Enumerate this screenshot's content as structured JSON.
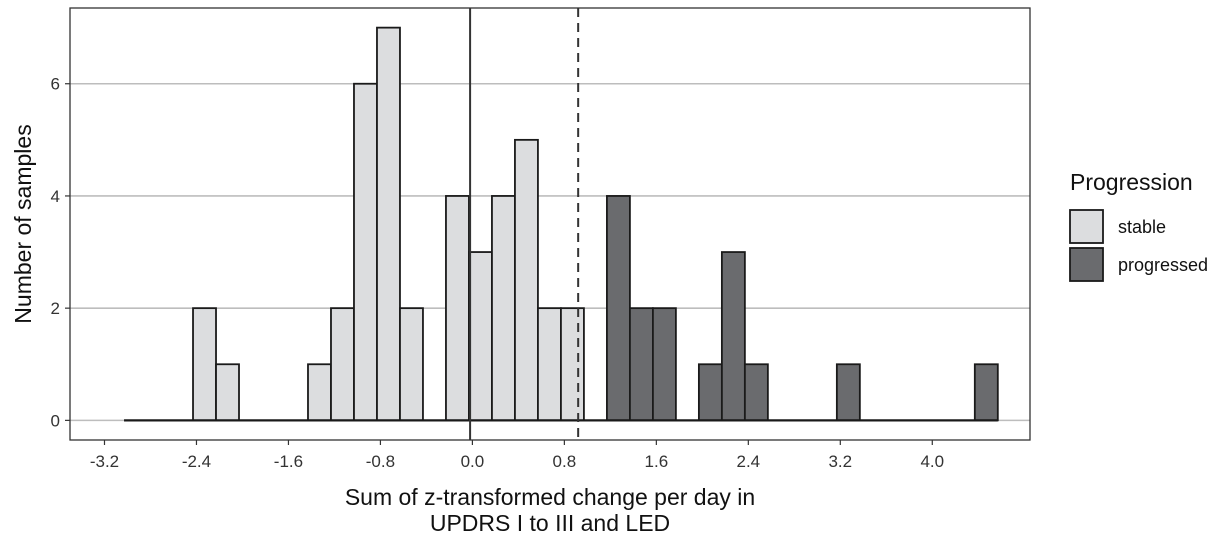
{
  "chart_data": {
    "type": "histogram",
    "title": "",
    "xlabel_lines": [
      "Sum of z-transformed change per day in",
      "UPDRS I to III and LED"
    ],
    "ylabel": "Number of samples",
    "xlim": [
      -3.5,
      4.85
    ],
    "ylim": [
      -0.35,
      7.35
    ],
    "x_ticks": [
      -3.2,
      -2.4,
      -1.6,
      -0.8,
      0.0,
      0.8,
      1.6,
      2.4,
      3.2,
      4.0
    ],
    "x_tick_labels": [
      "-3.2",
      "-2.4",
      "-1.6",
      "-0.8",
      "0.0",
      "0.8",
      "1.6",
      "2.4",
      "3.2",
      "4.0"
    ],
    "y_ticks": [
      0,
      2,
      4,
      6
    ],
    "y_tick_labels": [
      "0",
      "2",
      "4",
      "6"
    ],
    "grid": "horizontal major lines",
    "bin_width": 0.2,
    "first_bin_start": -3.03,
    "vlines": [
      {
        "x": -0.02,
        "style": "solid"
      },
      {
        "x": 0.92,
        "style": "dashed"
      }
    ],
    "legend": {
      "title": "Progression",
      "placement": "right",
      "entries": [
        {
          "label": "stable",
          "color": "#dcdddf"
        },
        {
          "label": "progressed",
          "color": "#6a6b6e"
        }
      ]
    },
    "series": [
      {
        "name": "stable",
        "color": "#dcdddf",
        "counts": [
          0,
          0,
          0,
          2,
          1,
          0,
          0,
          0,
          1,
          2,
          6,
          7,
          2,
          0,
          4,
          3,
          4,
          5,
          2,
          2,
          0,
          0,
          0,
          0,
          0,
          0,
          0,
          0,
          0,
          0,
          0,
          0,
          0,
          0,
          0,
          0,
          0,
          0
        ]
      },
      {
        "name": "progressed",
        "color": "#6a6b6e",
        "counts": [
          0,
          0,
          0,
          0,
          0,
          0,
          0,
          0,
          0,
          0,
          0,
          0,
          0,
          0,
          0,
          0,
          0,
          0,
          0,
          0,
          0,
          4,
          2,
          2,
          0,
          1,
          3,
          1,
          0,
          0,
          0,
          1,
          0,
          0,
          0,
          0,
          0,
          1
        ]
      }
    ]
  }
}
